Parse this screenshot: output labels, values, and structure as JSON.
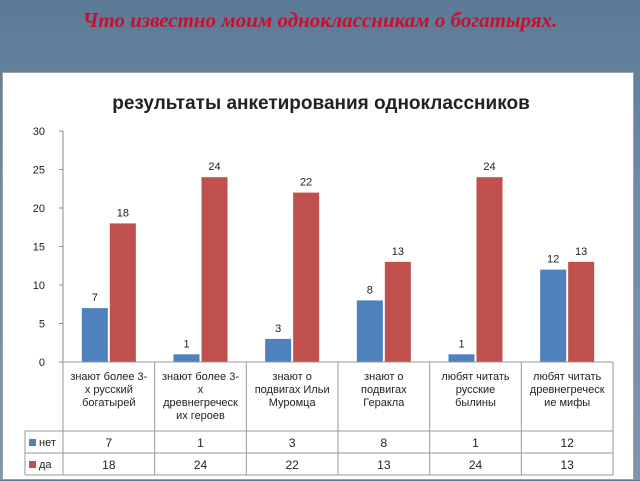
{
  "slide": {
    "title": "Что известно моим одноклассникам о богатырях."
  },
  "chart_data": {
    "type": "bar",
    "title": "результаты анкетирования одноклассников",
    "ylim": [
      0,
      30
    ],
    "yticks": [
      0,
      5,
      10,
      15,
      20,
      25,
      30
    ],
    "grid": false,
    "legend": "table-bottom",
    "categories": [
      "знают более 3-х русский богатырей",
      "знают более 3-х древнегреческих героев",
      "знают о подвигах Ильи Муромца",
      "знают о подвигах Геракла",
      "любят читать русские былины",
      "любят читать древнегреческие мифы"
    ],
    "category_lines": [
      [
        "знают более 3-",
        "х русский",
        "богатырей"
      ],
      [
        "знают более 3-",
        "х",
        "древнегреческ",
        "их героев"
      ],
      [
        "знают о",
        "подвигах Ильи",
        "Муромца"
      ],
      [
        "знают о",
        "подвигах",
        "Геракла"
      ],
      [
        "любят читать",
        "русские",
        "былины"
      ],
      [
        "любят читать",
        "древнегреческ",
        "ие мифы"
      ]
    ],
    "series": [
      {
        "name": "нет",
        "color": "#4f81bd",
        "values": [
          7,
          1,
          3,
          8,
          1,
          12
        ]
      },
      {
        "name": "да",
        "color": "#c0504d",
        "values": [
          18,
          24,
          22,
          13,
          24,
          13
        ]
      }
    ]
  }
}
